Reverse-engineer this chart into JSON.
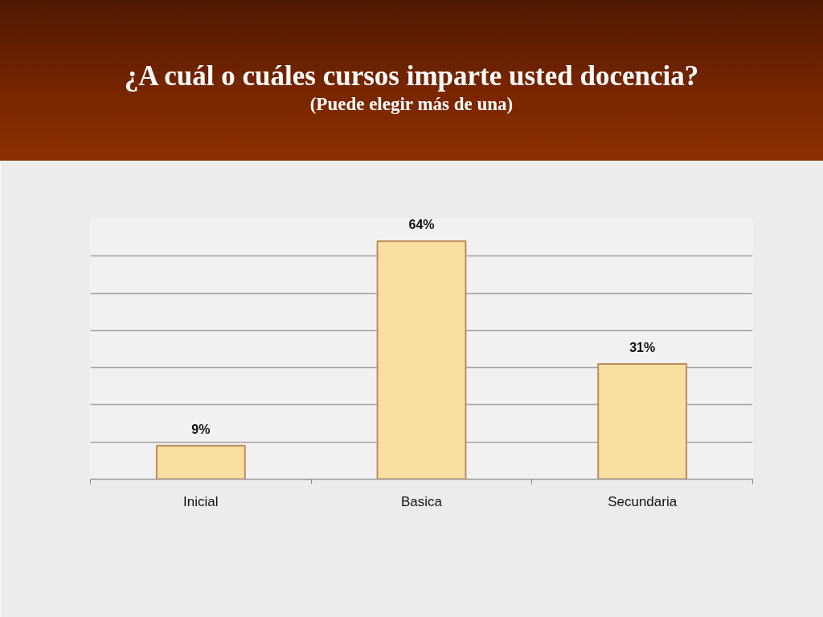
{
  "chart_data": {
    "type": "bar",
    "title": "¿A cuál o cuáles cursos imparte usted docencia?",
    "subtitle": "(Puede elegir más de una)",
    "categories": [
      "Inicial",
      "Basica",
      "Secundaria"
    ],
    "values": [
      9,
      64,
      31
    ],
    "color": "#f9dfa0",
    "value_labels": [
      "9%",
      "64%",
      "31%"
    ],
    "ylim": [
      0,
      70
    ],
    "yticks": [
      {
        "value": 0,
        "label": null
      },
      {
        "value": 10,
        "label": null
      },
      {
        "value": 20,
        "label": null
      },
      {
        "value": 30,
        "label": null
      },
      {
        "value": 40,
        "label": null
      },
      {
        "value": 50,
        "label": null
      },
      {
        "value": 60,
        "label": null
      },
      {
        "value": 70,
        "label": null
      }
    ],
    "grid": "y",
    "tick_labels": "x"
  }
}
